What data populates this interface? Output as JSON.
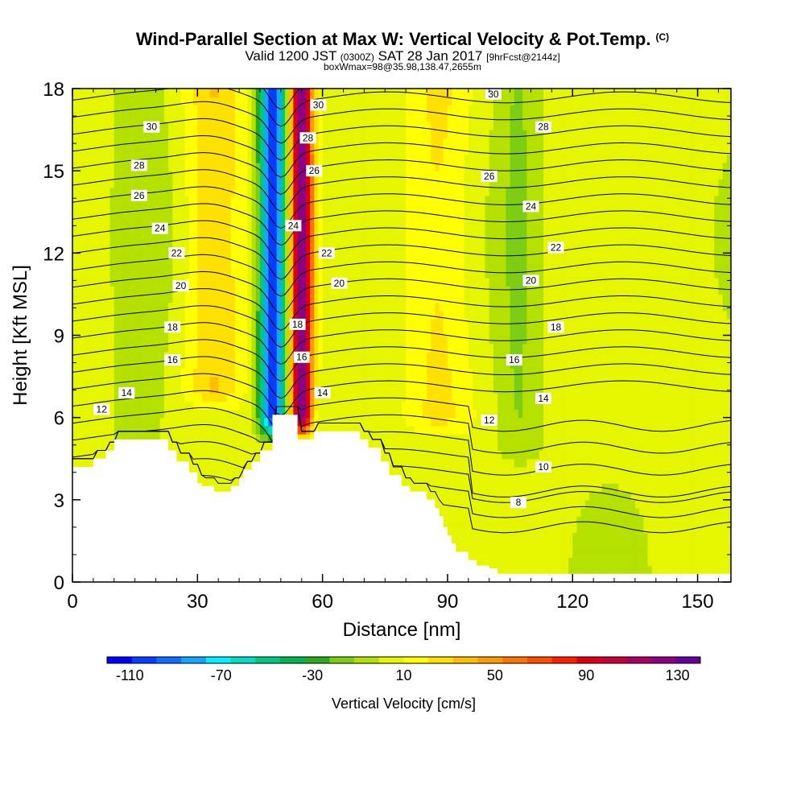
{
  "title": {
    "main": "Wind-Parallel Section at Max W: Vertical Velocity & Pot.Temp.",
    "main_suffix": "(C)",
    "valid_prefix": "Valid 1200 JST",
    "valid_zulu": "(0300Z)",
    "valid_date": "SAT 28 Jan 2017",
    "forecast": "[9hrFcst@2144z]",
    "box_info": "boxWmax=98@35.98,138.47,2655m"
  },
  "colors": {
    "terrain": "#ffffff",
    "contour": "#000000",
    "frame": "#000000"
  },
  "chart_data": {
    "type": "heatmap",
    "title": "Wind-Parallel Section at Max W: Vertical Velocity & Pot.Temp.",
    "xlabel": "Distance [nm]",
    "ylabel": "Height [Kft MSL]",
    "xlim": [
      0,
      158
    ],
    "ylim": [
      0,
      18
    ],
    "xticks": [
      0,
      30,
      60,
      90,
      120,
      150
    ],
    "yticks": [
      0,
      3,
      6,
      9,
      12,
      15,
      18
    ],
    "colorbar": {
      "title": "Vertical Velocity [cm/s]",
      "tick_labels": [
        "-110",
        "-70",
        "-30",
        "10",
        "50",
        "90",
        "130"
      ],
      "tick_values": [
        -110,
        -70,
        -30,
        10,
        50,
        90,
        130
      ],
      "range": [
        -120,
        140
      ],
      "colors": [
        "#0000ff",
        "#0a3cff",
        "#0f6eff",
        "#14a5ff",
        "#00f0ff",
        "#00dcc3",
        "#00c882",
        "#00b450",
        "#28aa1e",
        "#7dcd14",
        "#b4e100",
        "#e6f500",
        "#ffff00",
        "#ffe100",
        "#ffbe00",
        "#ff9b00",
        "#ff7300",
        "#ff4b00",
        "#ff1e00",
        "#dc0014",
        "#c8003c",
        "#aa0064",
        "#8c0082",
        "#64009b"
      ]
    },
    "velocity_features": [
      {
        "x_center": 48,
        "width": 3,
        "value": -115,
        "z_bottom": 6.0,
        "z_top": 18
      },
      {
        "x_center": 55,
        "width": 2.5,
        "value": 125,
        "z_bottom": 6.0,
        "z_top": 18
      },
      {
        "x_center": 34,
        "width": 7,
        "value": 30,
        "z_bottom": 7,
        "z_top": 18
      },
      {
        "x_center": 16,
        "width": 6,
        "value": -10,
        "z_bottom": 5,
        "z_top": 18
      },
      {
        "x_center": 88,
        "width": 8,
        "value": 22,
        "z_bottom": 6,
        "z_top": 18
      },
      {
        "x_center": 107,
        "width": 5,
        "value": -15,
        "z_bottom": 5,
        "z_top": 18
      },
      {
        "x_center": 145,
        "width": 10,
        "value": 0,
        "z_bottom": 0,
        "z_top": 18
      }
    ],
    "terrain_profile": {
      "x": [
        0,
        3,
        5,
        8,
        10,
        20,
        23,
        25,
        28,
        30,
        31,
        34,
        36,
        38,
        40,
        41,
        43,
        45,
        48,
        52,
        54,
        58,
        62,
        68,
        69,
        71,
        74,
        76,
        79,
        81,
        85,
        87,
        88,
        89,
        90,
        91,
        92,
        95,
        97,
        100,
        102,
        158
      ],
      "height_kft": [
        4.2,
        4.2,
        4.5,
        4.8,
        5.2,
        5.2,
        4.8,
        4.4,
        4.0,
        3.6,
        3.5,
        3.3,
        3.3,
        3.5,
        3.8,
        4.1,
        4.4,
        4.8,
        6.1,
        6.1,
        5.2,
        5.5,
        5.5,
        5.5,
        5.2,
        4.9,
        4.4,
        3.9,
        3.5,
        3.3,
        3.0,
        2.7,
        2.4,
        2.0,
        1.7,
        1.4,
        1.1,
        0.8,
        0.6,
        0.5,
        0.3,
        0.3
      ]
    },
    "theta_contours": {
      "interval": 1,
      "labeled_levels": [
        8,
        10,
        12,
        14,
        16,
        18,
        20,
        22,
        24,
        26,
        28,
        30
      ],
      "labels": [
        {
          "text": "30",
          "x": 19,
          "z": 16.6
        },
        {
          "text": "28",
          "x": 16,
          "z": 15.2
        },
        {
          "text": "26",
          "x": 16,
          "z": 14.1
        },
        {
          "text": "24",
          "x": 21,
          "z": 12.9
        },
        {
          "text": "22",
          "x": 25,
          "z": 12.0
        },
        {
          "text": "20",
          "x": 26,
          "z": 10.8
        },
        {
          "text": "18",
          "x": 24,
          "z": 9.3
        },
        {
          "text": "16",
          "x": 24,
          "z": 8.1
        },
        {
          "text": "14",
          "x": 13,
          "z": 6.9
        },
        {
          "text": "12",
          "x": 7,
          "z": 6.3
        },
        {
          "text": "30",
          "x": 59,
          "z": 17.4
        },
        {
          "text": "28",
          "x": 56.5,
          "z": 16.2
        },
        {
          "text": "26",
          "x": 58,
          "z": 15.0
        },
        {
          "text": "24",
          "x": 53,
          "z": 13.0
        },
        {
          "text": "22",
          "x": 61,
          "z": 12.0
        },
        {
          "text": "20",
          "x": 64,
          "z": 10.9
        },
        {
          "text": "18",
          "x": 54,
          "z": 9.4
        },
        {
          "text": "16",
          "x": 55,
          "z": 8.2
        },
        {
          "text": "14",
          "x": 60,
          "z": 6.9
        },
        {
          "text": "30",
          "x": 101,
          "z": 17.8
        },
        {
          "text": "28",
          "x": 113,
          "z": 16.6
        },
        {
          "text": "26",
          "x": 100,
          "z": 14.8
        },
        {
          "text": "24",
          "x": 110,
          "z": 13.7
        },
        {
          "text": "22",
          "x": 116,
          "z": 12.2
        },
        {
          "text": "20",
          "x": 110,
          "z": 11.0
        },
        {
          "text": "18",
          "x": 116,
          "z": 9.3
        },
        {
          "text": "16",
          "x": 106,
          "z": 8.1
        },
        {
          "text": "14",
          "x": 113,
          "z": 6.7
        },
        {
          "text": "12",
          "x": 100,
          "z": 5.9
        },
        {
          "text": "10",
          "x": 113,
          "z": 4.2
        },
        {
          "text": "8",
          "x": 107,
          "z": 2.9
        }
      ]
    }
  }
}
